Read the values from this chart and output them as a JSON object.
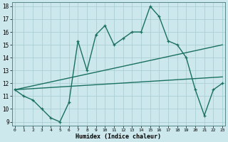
{
  "xlabel": "Humidex (Indice chaleur)",
  "background_color": "#cce8ec",
  "grid_color": "#aad0d5",
  "line_color": "#1a7060",
  "xlim": [
    0,
    23
  ],
  "ylim": [
    9,
    18
  ],
  "xticks": [
    0,
    1,
    2,
    3,
    4,
    5,
    6,
    7,
    8,
    9,
    10,
    11,
    12,
    13,
    14,
    15,
    16,
    17,
    18,
    19,
    20,
    21,
    22,
    23
  ],
  "yticks": [
    9,
    10,
    11,
    12,
    13,
    14,
    15,
    16,
    17,
    18
  ],
  "line1_x": [
    0,
    1,
    2,
    3,
    4,
    5,
    6,
    7,
    8,
    9,
    10,
    11,
    12,
    13,
    14,
    15,
    16,
    17,
    18,
    19,
    20,
    21,
    22,
    23
  ],
  "line1_y": [
    11.5,
    11.0,
    10.7,
    10.0,
    9.3,
    9.0,
    10.5,
    15.3,
    13.0,
    15.8,
    16.5,
    15.0,
    15.5,
    16.0,
    16.0,
    18.0,
    17.2,
    15.3,
    15.0,
    14.0,
    11.5,
    9.5,
    11.5,
    12.0
  ],
  "line2_x": [
    0,
    23
  ],
  "line2_y": [
    11.5,
    15.0
  ],
  "line3_x": [
    0,
    23
  ],
  "line3_y": [
    11.5,
    12.5
  ],
  "figsize": [
    3.2,
    2.0
  ],
  "dpi": 100
}
